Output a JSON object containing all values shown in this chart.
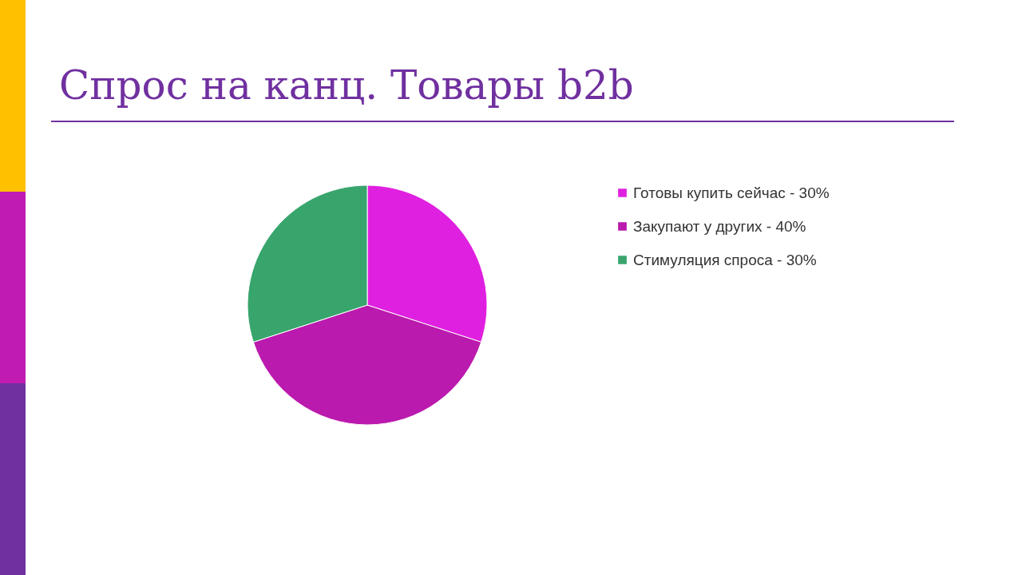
{
  "chart_data": {
    "type": "pie",
    "title": "Спрос на канц. Товары b2b",
    "categories": [
      "Готовы купить сейчас - 30%",
      "Закупают у других - 40%",
      "Стимуляция спроса - 30%"
    ],
    "values": [
      30,
      40,
      30
    ],
    "colors": [
      "#e020e0",
      "#bb1aae",
      "#38a56c"
    ],
    "legend": "right"
  }
}
